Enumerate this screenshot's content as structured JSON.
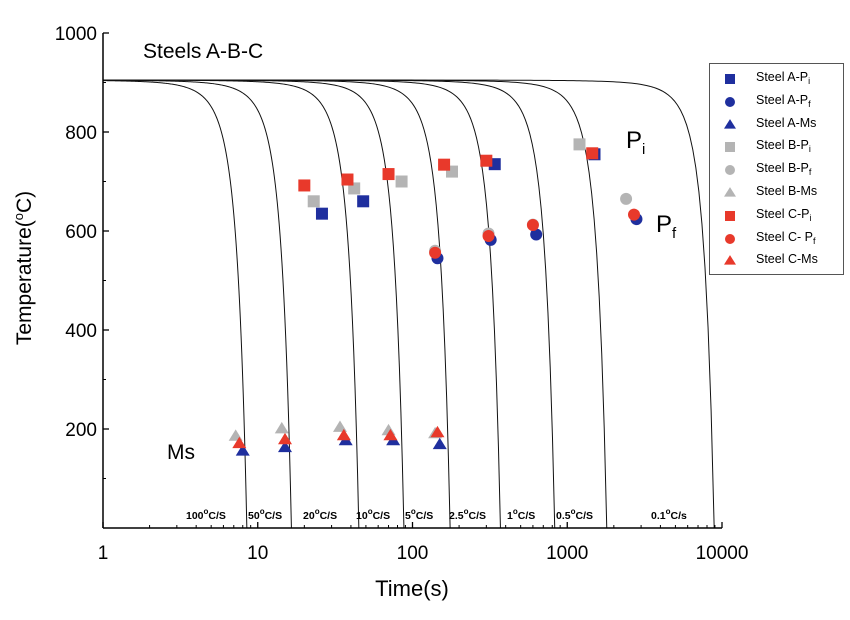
{
  "chart_data": {
    "type": "scatter",
    "title": "Steels A-B-C",
    "xlabel": "Time(s)",
    "ylabel_main": "Temperature(",
    "ylabel_sup": "o",
    "ylabel_tail": "C)",
    "xscale": "log",
    "xlim": [
      1,
      10000
    ],
    "ylim": [
      0,
      1000
    ],
    "x_ticks": [
      "1",
      "10",
      "100",
      "1000",
      "10000"
    ],
    "y_ticks": [
      "200",
      "400",
      "600",
      "800",
      "1000"
    ],
    "annotations": {
      "Pi_main": "P",
      "Pi_sub": "i",
      "Pf_main": "P",
      "Pf_sub": "f",
      "Ms": "Ms"
    },
    "cooling_curves": [
      {
        "label_num": "100",
        "label_sup": "o",
        "label_unit": "C/S",
        "t_end": 8.5
      },
      {
        "label_num": "50",
        "label_sup": "o",
        "label_unit": "C/S",
        "t_end": 16.5
      },
      {
        "label_num": "20",
        "label_sup": "o",
        "label_unit": "C/S",
        "t_end": 45
      },
      {
        "label_num": "10",
        "label_sup": "o",
        "label_unit": "C/S",
        "t_end": 88
      },
      {
        "label_num": "5",
        "label_sup": "o",
        "label_unit": "C/S",
        "t_end": 175
      },
      {
        "label_num": "2.5",
        "label_sup": "o",
        "label_unit": "C/S",
        "t_end": 370
      },
      {
        "label_num": "1",
        "label_sup": "o",
        "label_unit": "C/S",
        "t_end": 830
      },
      {
        "label_num": "0.5",
        "label_sup": "o",
        "label_unit": "C/S",
        "t_end": 1800
      },
      {
        "label_num": "0.1",
        "label_sup": "o",
        "label_unit": "C/s",
        "t_end": 8900
      }
    ],
    "series": [
      {
        "name_main": "Steel A-P",
        "name_sub": "i",
        "marker": "square",
        "color": "#1f2f9e",
        "points": [
          [
            26,
            635
          ],
          [
            48,
            660
          ],
          [
            340,
            735
          ],
          [
            1500,
            755
          ]
        ]
      },
      {
        "name_main": "Steel A-P",
        "name_sub": "f",
        "marker": "circle",
        "color": "#1f2f9e",
        "points": [
          [
            145,
            545
          ],
          [
            320,
            582
          ],
          [
            630,
            593
          ],
          [
            2800,
            624
          ]
        ]
      },
      {
        "name_main": "Steel A-Ms",
        "name_sub": "",
        "marker": "triangle",
        "color": "#1f2f9e",
        "points": [
          [
            8,
            155
          ],
          [
            15,
            162
          ],
          [
            37,
            176
          ],
          [
            75,
            176
          ],
          [
            150,
            168
          ]
        ]
      },
      {
        "name_main": "Steel B-P",
        "name_sub": "i",
        "marker": "square",
        "color": "#b4b4b4",
        "points": [
          [
            23,
            660
          ],
          [
            42,
            686
          ],
          [
            85,
            700
          ],
          [
            180,
            720
          ],
          [
            1200,
            775
          ]
        ]
      },
      {
        "name_main": "Steel B-P",
        "name_sub": "f",
        "marker": "circle",
        "color": "#b4b4b4",
        "points": [
          [
            140,
            560
          ],
          [
            310,
            595
          ],
          [
            600,
            613
          ],
          [
            2400,
            665
          ]
        ]
      },
      {
        "name_main": "Steel B-Ms",
        "name_sub": "",
        "marker": "triangle",
        "color": "#b4b4b4",
        "points": [
          [
            7.2,
            185
          ],
          [
            14.3,
            200
          ],
          [
            34,
            203
          ],
          [
            70,
            196
          ],
          [
            140,
            190
          ]
        ]
      },
      {
        "name_main": "Steel C-P",
        "name_sub": "i",
        "marker": "square",
        "color": "#e8392b",
        "points": [
          [
            20,
            692
          ],
          [
            38,
            704
          ],
          [
            70,
            715
          ],
          [
            160,
            734
          ],
          [
            300,
            742
          ],
          [
            1450,
            757
          ]
        ]
      },
      {
        "name_main": "Steel C- P",
        "name_sub": "f",
        "marker": "circle",
        "color": "#e8392b",
        "points": [
          [
            140,
            556
          ],
          [
            310,
            590
          ],
          [
            600,
            612
          ],
          [
            2700,
            633
          ]
        ]
      },
      {
        "name_main": "Steel C-Ms",
        "name_sub": "",
        "marker": "triangle",
        "color": "#e8392b",
        "points": [
          [
            7.6,
            170
          ],
          [
            15,
            178
          ],
          [
            36,
            186
          ],
          [
            72,
            186
          ],
          [
            145,
            192
          ]
        ]
      }
    ],
    "legend_position": "top-right",
    "grid": false
  }
}
